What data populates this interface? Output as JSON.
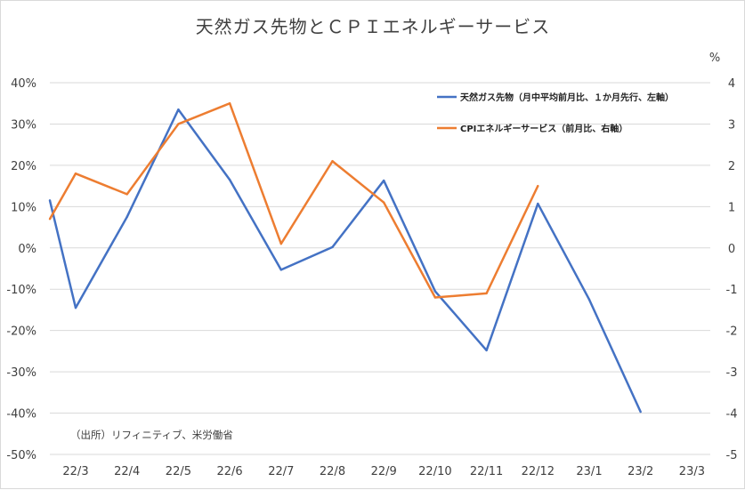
{
  "chart_data": {
    "type": "line",
    "title": "天然ガス先物とＣＰＩエネルギーサービス",
    "categories": [
      "22/3",
      "22/4",
      "22/5",
      "22/6",
      "22/7",
      "22/8",
      "22/9",
      "22/10",
      "22/11",
      "22/12",
      "23/1",
      "23/2",
      "23/3"
    ],
    "x_prefix_value_label": "",
    "left_axis": {
      "ticks": [
        "40%",
        "30%",
        "20%",
        "10%",
        "0%",
        "-10%",
        "-20%",
        "-30%",
        "-40%",
        "-50%"
      ],
      "ylim": [
        -0.5,
        0.4
      ]
    },
    "right_axis": {
      "unit": "%",
      "ticks": [
        "4",
        "3",
        "2",
        "1",
        "0",
        "-1",
        "-2",
        "-3",
        "-4",
        "-5"
      ],
      "ylim": [
        -5,
        4
      ]
    },
    "series": [
      {
        "name": "天然ガス先物（月中平均前月比、１か月先行、左軸）",
        "axis": "left",
        "color": "#4472C4",
        "start_value": 0.115,
        "values": [
          -0.145,
          0.075,
          0.335,
          0.165,
          -0.053,
          0.002,
          0.163,
          -0.105,
          -0.248,
          0.107,
          -0.125,
          -0.397,
          null
        ]
      },
      {
        "name": "CPIエネルギーサービス（前月比、右軸）",
        "axis": "right",
        "color": "#ED7D31",
        "start_value": 0.7,
        "values": [
          1.8,
          1.3,
          3.0,
          3.5,
          0.1,
          2.1,
          1.1,
          -1.2,
          -1.1,
          1.5,
          null,
          null,
          null
        ]
      }
    ],
    "source_note": "（出所）リフィニティブ、米労働省",
    "grid": true,
    "legend_position": "top-right"
  }
}
